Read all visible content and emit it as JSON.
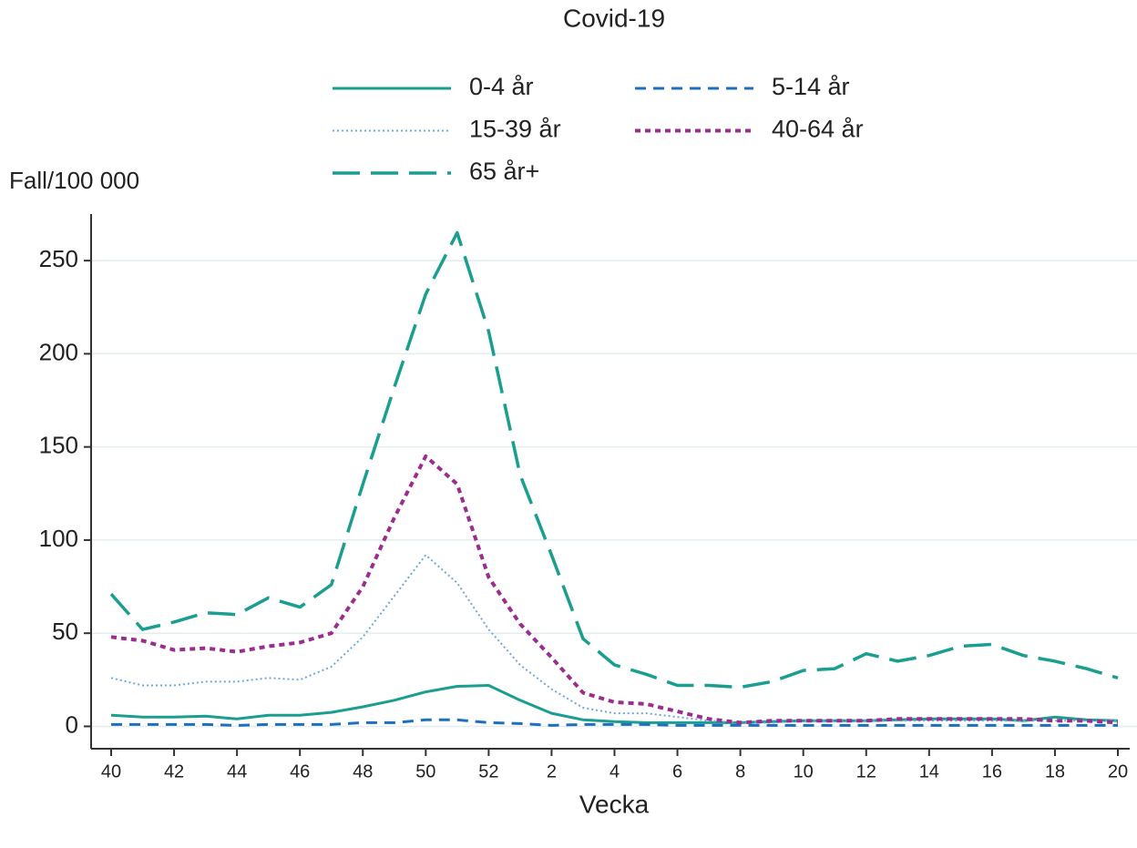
{
  "chart_data": {
    "type": "line",
    "title": "Covid-19",
    "y_label": "Fall/100 000",
    "x_label": "Vecka",
    "categories": [
      "40",
      null,
      "42",
      null,
      "44",
      null,
      "46",
      null,
      "48",
      null,
      "50",
      null,
      "52",
      null,
      "2",
      null,
      "4",
      null,
      "6",
      null,
      "8",
      null,
      "10",
      null,
      "12",
      null,
      "14",
      null,
      "16",
      null,
      "18",
      null,
      "20"
    ],
    "series": [
      {
        "name": "0-4 år",
        "color": "#1a9e8f",
        "style": "solid",
        "values": [
          6,
          5,
          5,
          5.5,
          4,
          6,
          6,
          7.5,
          10.5,
          14,
          18.5,
          21.5,
          22,
          14,
          7,
          3.5,
          2.5,
          2,
          2,
          2,
          2,
          2.5,
          3,
          3,
          3,
          3.5,
          4,
          4,
          4,
          3,
          5,
          3.5,
          3
        ]
      },
      {
        "name": "5-14 år",
        "color": "#1f6fbf",
        "style": "dashed",
        "values": [
          1,
          1,
          1,
          1,
          0.5,
          1,
          1,
          1,
          2,
          2,
          3.5,
          3.5,
          2,
          1.5,
          0.5,
          1,
          1,
          1,
          0.5,
          0.5,
          0.5,
          0.5,
          0.5,
          0.5,
          0.5,
          0.5,
          0.5,
          0.5,
          0.5,
          0.5,
          0.5,
          0.5,
          0.5
        ]
      },
      {
        "name": "15-39 år",
        "color": "#6fa8dc",
        "style": "dotted",
        "values": [
          26,
          22,
          22,
          24,
          24,
          26,
          25,
          32,
          48,
          70,
          92,
          77,
          52,
          33,
          20,
          10,
          7,
          7,
          5,
          3,
          2,
          2,
          3,
          3,
          3,
          3,
          3,
          3,
          3,
          3,
          3,
          3,
          3
        ]
      },
      {
        "name": "40-64 år",
        "color": "#9b2d8e",
        "style": "shortdash",
        "values": [
          48,
          46,
          41,
          42,
          40,
          43,
          45,
          50,
          75,
          112,
          145,
          130,
          80,
          55,
          37,
          18,
          13,
          12,
          8,
          4,
          2,
          3,
          3,
          3,
          3,
          4,
          4,
          4,
          4,
          4,
          3,
          3,
          2
        ]
      },
      {
        "name": "65 år+",
        "color": "#1a9e8f",
        "style": "longdash",
        "values": [
          71,
          52,
          56,
          61,
          60,
          69,
          64,
          76,
          130,
          182,
          232,
          265,
          212,
          135,
          92,
          47,
          33,
          28,
          22,
          22,
          21,
          24,
          30,
          31,
          39,
          35,
          38,
          43,
          44,
          38,
          35,
          31,
          26
        ]
      }
    ],
    "ylim": [
      -12,
      275
    ],
    "yticks": [
      0,
      50,
      100,
      150,
      200,
      250
    ],
    "grid": true
  }
}
